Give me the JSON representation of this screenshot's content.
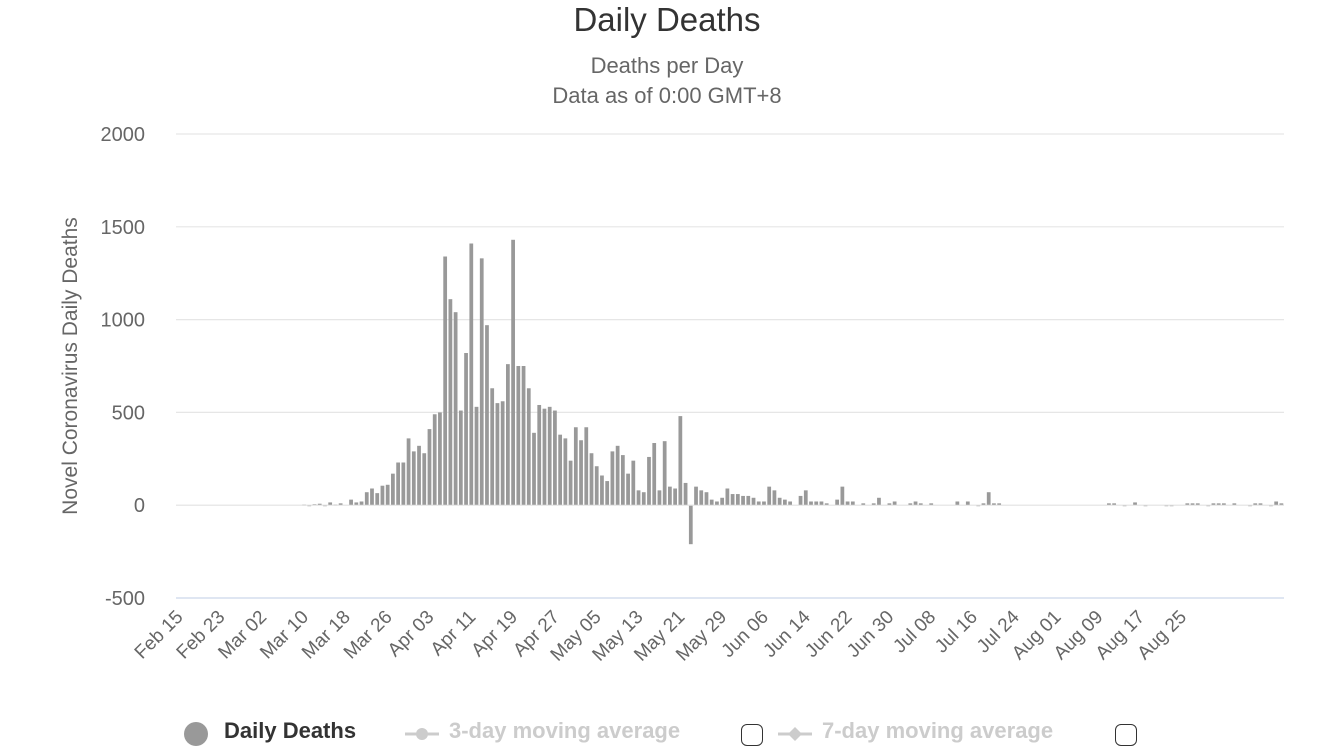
{
  "chart_data": {
    "type": "bar",
    "title": "Daily Deaths",
    "subtitle": [
      "Deaths per Day",
      "Data as of 0:00 GMT+8"
    ],
    "ylabel": "Novel Coronavirus Daily Deaths",
    "xlabel": "",
    "ylim": [
      -500,
      2000
    ],
    "yticks": [
      -500,
      0,
      500,
      1000,
      1500,
      2000
    ],
    "grid": true,
    "x_start": "Feb 15",
    "xtick_labels": [
      "Feb 15",
      "Feb 23",
      "Mar 02",
      "Mar 10",
      "Mar 18",
      "Mar 26",
      "Apr 03",
      "Apr 11",
      "Apr 19",
      "Apr 27",
      "May 05",
      "May 13",
      "May 21",
      "May 29",
      "Jun 06",
      "Jun 14",
      "Jun 22",
      "Jun 30",
      "Jul 08",
      "Jul 16",
      "Jul 24",
      "Aug 01",
      "Aug 09",
      "Aug 17",
      "Aug 25"
    ],
    "series": [
      {
        "name": "Daily Deaths",
        "color": "#999999",
        "values": [
          0,
          0,
          0,
          0,
          0,
          0,
          0,
          0,
          0,
          0,
          0,
          0,
          0,
          0,
          0,
          0,
          0,
          0,
          0,
          0,
          0,
          0,
          0,
          0,
          3,
          -2,
          5,
          8,
          -5,
          15,
          3,
          10,
          0,
          30,
          15,
          20,
          70,
          90,
          65,
          105,
          110,
          170,
          230,
          230,
          360,
          290,
          320,
          280,
          410,
          490,
          500,
          1340,
          1110,
          1040,
          510,
          820,
          1410,
          530,
          1330,
          970,
          630,
          550,
          560,
          760,
          1430,
          750,
          750,
          630,
          390,
          540,
          520,
          530,
          510,
          380,
          360,
          240,
          420,
          350,
          420,
          280,
          210,
          160,
          130,
          290,
          320,
          270,
          170,
          240,
          80,
          70,
          260,
          335,
          80,
          345,
          100,
          90,
          480,
          120,
          -210,
          100,
          80,
          70,
          30,
          20,
          40,
          90,
          60,
          60,
          50,
          50,
          40,
          20,
          20,
          100,
          80,
          40,
          30,
          20,
          0,
          50,
          80,
          20,
          20,
          20,
          10,
          0,
          30,
          100,
          20,
          20,
          0,
          10,
          0,
          10,
          40,
          0,
          10,
          20,
          0,
          0,
          10,
          20,
          10,
          0,
          10,
          0,
          0,
          0,
          0,
          20,
          0,
          20,
          0,
          -5,
          10,
          70,
          10,
          10,
          0,
          0,
          0,
          0,
          0,
          0,
          0,
          0,
          0,
          0,
          0,
          0,
          0,
          0,
          0,
          0,
          0,
          0,
          0,
          0,
          10,
          10,
          0,
          -5,
          0,
          15,
          0,
          -5,
          0,
          0,
          0,
          -5,
          -5,
          0,
          0,
          10,
          10,
          10,
          0,
          -5,
          10,
          10,
          10,
          0,
          10,
          0,
          0,
          -5,
          10,
          10,
          0,
          -5,
          20,
          10
        ]
      },
      {
        "name": "3-day moving average",
        "color": "#cccccc",
        "visible": false
      },
      {
        "name": "7-day moving average",
        "color": "#cccccc",
        "visible": false
      }
    ],
    "legend": "bottom"
  },
  "colors": {
    "bar": "#999999",
    "grid": "#e6e6e6",
    "axis": "#ccd6eb",
    "text": "#333333",
    "muted": "#666666",
    "legend_hidden": "#cccccc"
  }
}
